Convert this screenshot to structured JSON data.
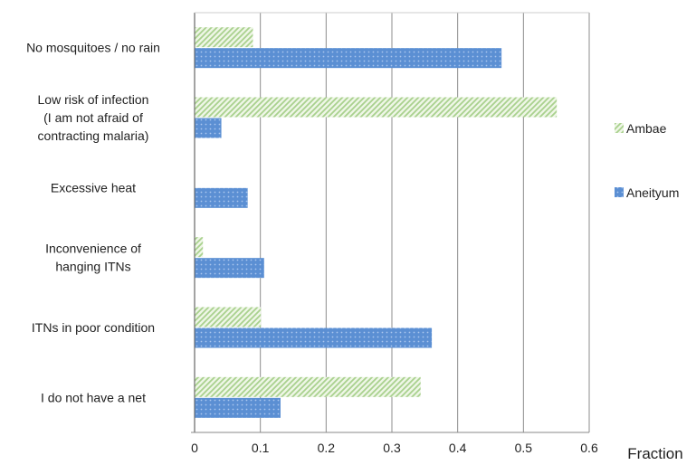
{
  "chart_data": {
    "type": "bar",
    "orientation": "horizontal",
    "categories": [
      [
        "No mosquitoes / no rain"
      ],
      [
        "Low risk of infection",
        "(I am not afraid of",
        "contracting malaria)"
      ],
      [
        "Excessive heat"
      ],
      [
        "Inconvenience of",
        "hanging ITNs"
      ],
      [
        "ITNs in poor condition"
      ],
      [
        "I do not have a net"
      ]
    ],
    "series": [
      {
        "name": "Ambae",
        "color": "#a9d18e",
        "pattern": "diagonal-stripes",
        "values": [
          0.088,
          0.55,
          0.0,
          0.012,
          0.1,
          0.343
        ]
      },
      {
        "name": "Aneityum",
        "color": "#4f81bd",
        "pattern": "dotted",
        "values": [
          0.466,
          0.04,
          0.08,
          0.105,
          0.36,
          0.13
        ]
      }
    ],
    "xlabel": "Fraction",
    "xlim": [
      0,
      0.6
    ],
    "xticks": [
      "0",
      "0.1",
      "0.2",
      "0.3",
      "0.4",
      "0.5",
      "0.6"
    ],
    "grid": true,
    "legend_position": "right"
  }
}
